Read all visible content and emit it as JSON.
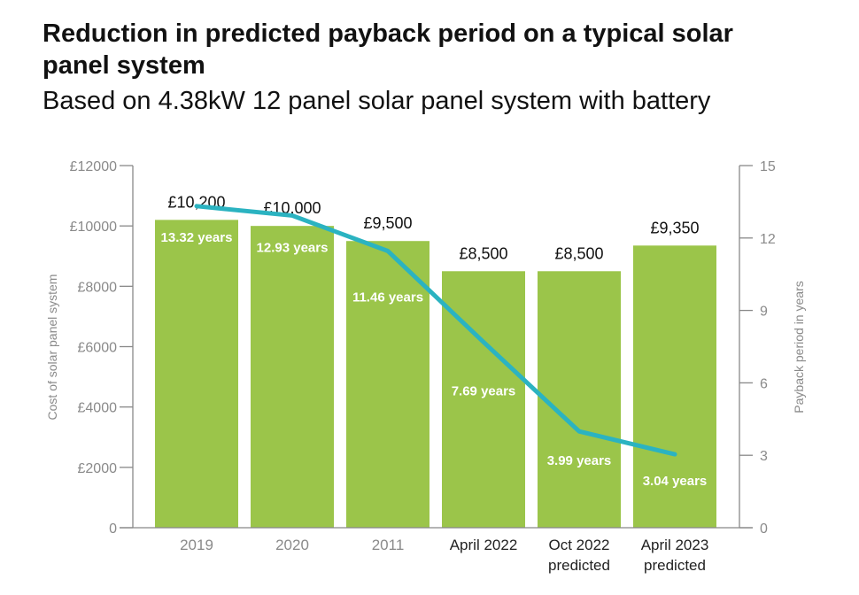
{
  "title": "Reduction in predicted payback period on a typical solar panel system",
  "subtitle": "Based on 4.38kW 12 panel solar panel system with battery",
  "colors": {
    "bar": "#9bc54a",
    "line": "#2bb3c1",
    "axis": "#888888",
    "label_dark": "#222222"
  },
  "chart_data": {
    "type": "bar+line",
    "categories": [
      [
        "2019"
      ],
      [
        "2020"
      ],
      [
        "2011"
      ],
      [
        "April 2022"
      ],
      [
        "Oct 2022",
        "predicted"
      ],
      [
        "April 2023",
        "predicted"
      ]
    ],
    "series": [
      {
        "type": "bar",
        "axis": "left",
        "values": [
          10200,
          10000,
          9500,
          8500,
          8500,
          9350
        ],
        "labels": [
          "£10,200",
          "£10,000",
          "£9,500",
          "£8,500",
          "£8,500",
          "£9,350"
        ]
      },
      {
        "type": "line",
        "axis": "right",
        "values": [
          13.32,
          12.93,
          11.46,
          7.69,
          3.99,
          3.04
        ],
        "labels": [
          "13.32 years",
          "12.93 years",
          "11.46 years",
          "7.69 years",
          "3.99 years",
          "3.04 years"
        ]
      }
    ],
    "ylabel": "Cost of solar panel system",
    "y2label": "Payback period in years",
    "ylim": [
      0,
      12000
    ],
    "yticks": [
      0,
      2000,
      4000,
      6000,
      8000,
      10000,
      12000
    ],
    "ytick_labels": [
      "0",
      "£2000",
      "£4000",
      "£6000",
      "£8000",
      "£10000",
      "£12000"
    ],
    "y2lim": [
      0,
      15
    ],
    "y2ticks": [
      0,
      3,
      6,
      9,
      12,
      15
    ],
    "y2tick_labels": [
      "0",
      "3",
      "6",
      "9",
      "12",
      "15"
    ],
    "grid": false
  }
}
